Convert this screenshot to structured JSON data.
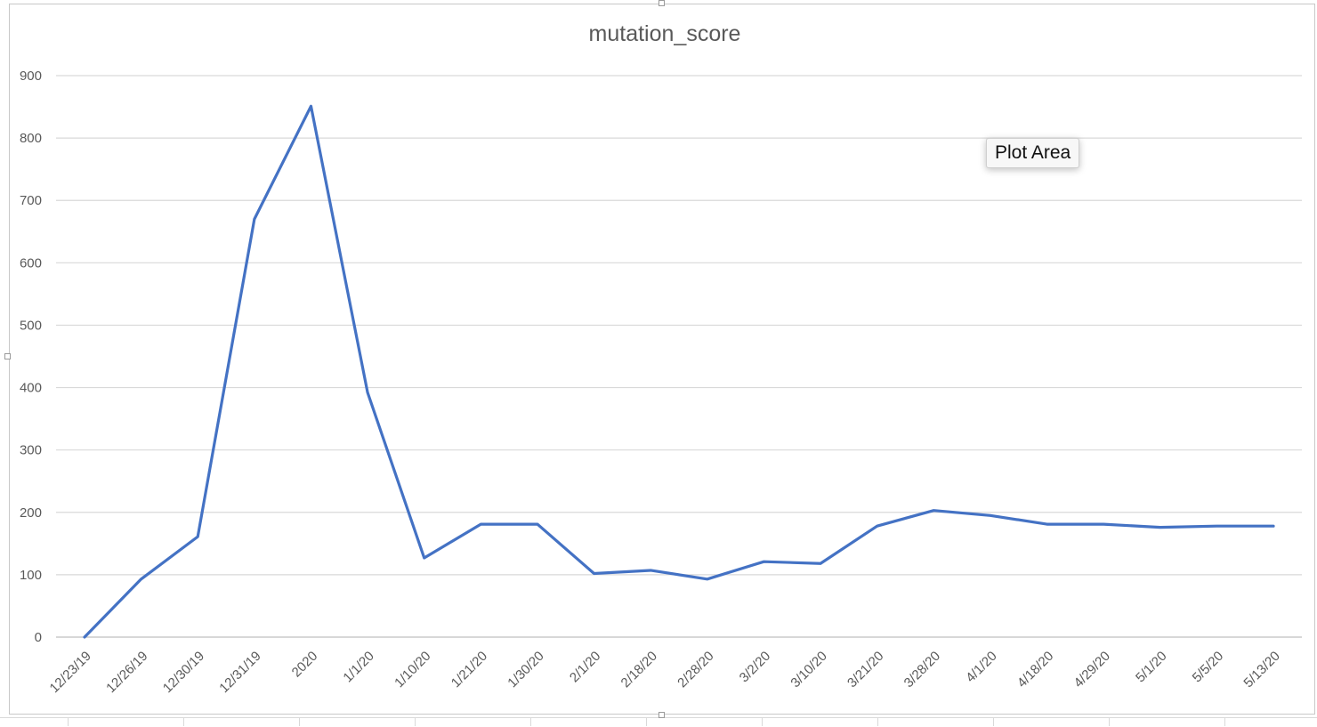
{
  "chart_data": {
    "type": "line",
    "title": "mutation_score",
    "xlabel": "",
    "ylabel": "",
    "categories": [
      "12/23/19",
      "12/26/19",
      "12/30/19",
      "12/31/19",
      "2020",
      "1/1/20",
      "1/10/20",
      "1/21/20",
      "1/30/20",
      "2/1/20",
      "2/18/20",
      "2/28/20",
      "3/2/20",
      "3/10/20",
      "3/21/20",
      "3/28/20",
      "4/1/20",
      "4/18/20",
      "4/29/20",
      "5/1/20",
      "5/5/20",
      "5/13/20"
    ],
    "series": [
      {
        "values": [
          0,
          93,
          161,
          670,
          851,
          392,
          127,
          181,
          181,
          102,
          107,
          93,
          121,
          118,
          178,
          203,
          195,
          181,
          181,
          176,
          178,
          178
        ]
      }
    ],
    "ylim": [
      0,
      900
    ],
    "yticks": [
      0,
      100,
      200,
      300,
      400,
      500,
      600,
      700,
      800,
      900
    ],
    "grid": true,
    "legend": "none",
    "line_color": "#4472c4",
    "grid_color": "#d9d9d9",
    "axis_color": "#bfbfbf"
  },
  "tooltip": {
    "label": "Plot Area"
  }
}
